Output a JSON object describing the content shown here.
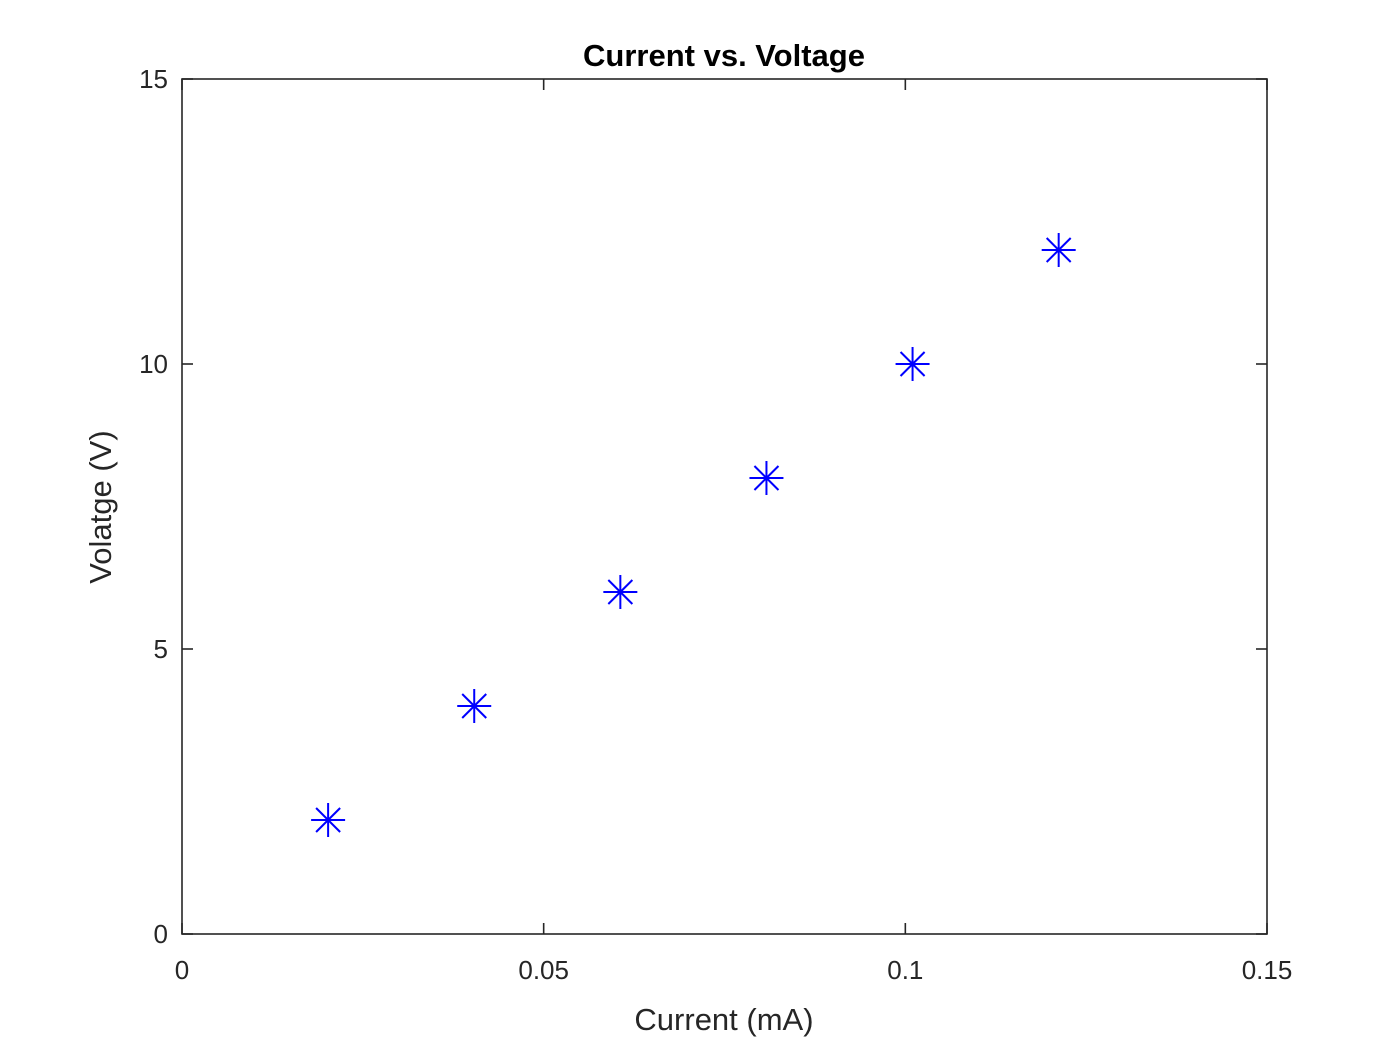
{
  "chart_data": {
    "type": "scatter",
    "title": "Current vs. Voltage",
    "xlabel": "Current (mA)",
    "ylabel": "Volatge (V)",
    "xlim": [
      0,
      0.15
    ],
    "ylim": [
      0,
      15
    ],
    "x_ticks": [
      0,
      0.05,
      0.1,
      0.15
    ],
    "x_tick_labels": [
      "0",
      "0.05",
      "0.1",
      "0.15"
    ],
    "y_ticks": [
      0,
      5,
      10,
      15
    ],
    "y_tick_labels": [
      "0",
      "5",
      "10",
      "15"
    ],
    "grid": false,
    "marker": "asterisk",
    "series": [
      {
        "color": "#0000ff",
        "x": [
          0.0202,
          0.0404,
          0.0606,
          0.0808,
          0.101,
          0.1212
        ],
        "y": [
          2,
          4,
          6,
          8,
          10,
          12
        ]
      }
    ]
  }
}
